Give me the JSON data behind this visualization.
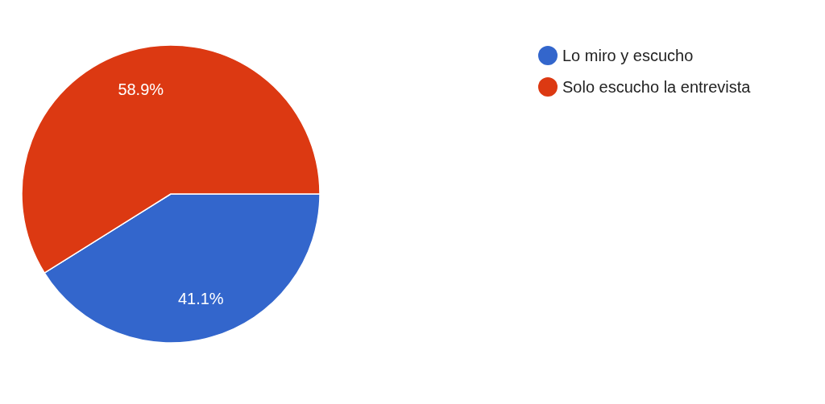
{
  "chart_data": {
    "type": "pie",
    "categories": [
      "Lo miro y escucho",
      "Solo escucho la entrevista"
    ],
    "values": [
      41.1,
      58.9
    ],
    "colors": [
      "#3366cc",
      "#dc3912"
    ],
    "value_labels": [
      "41.1%",
      "58.9%"
    ],
    "legend": "right"
  }
}
